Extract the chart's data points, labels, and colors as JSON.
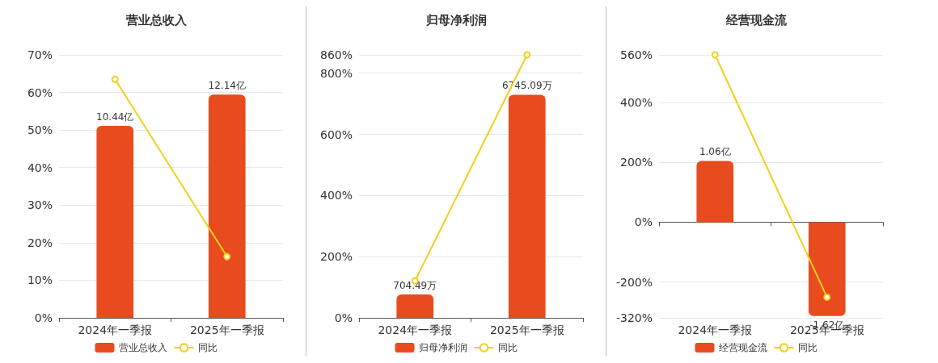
{
  "chart_data": [
    {
      "type": "bar",
      "title": "营业总收入",
      "categories": [
        "2024年一季报",
        "2025年一季报"
      ],
      "series": [
        {
          "name": "营业总收入",
          "axis": "y2",
          "color": "#e84c1e",
          "values": [
            10.44,
            12.14
          ],
          "value_labels": [
            "10.44亿",
            "12.14亿"
          ]
        },
        {
          "name": "同比",
          "type": "line",
          "color": "#f2cf1b",
          "values": [
            63.5,
            16.3
          ]
        }
      ],
      "ylim": [
        0,
        70
      ],
      "yticks": [
        {
          "value": 0,
          "label": "0%"
        },
        {
          "value": 10,
          "label": "10%"
        },
        {
          "value": 20,
          "label": "20%"
        },
        {
          "value": 30,
          "label": "30%"
        },
        {
          "value": 40,
          "label": "40%"
        },
        {
          "value": 50,
          "label": "50%"
        },
        {
          "value": 60,
          "label": "60%"
        },
        {
          "value": 70,
          "label": "70%"
        }
      ],
      "y2lim": [
        0,
        14.3
      ],
      "grid": "y",
      "legend": "bottom",
      "marker": "circle"
    },
    {
      "type": "bar",
      "title": "归母净利润",
      "categories": [
        "2024年一季报",
        "2025年一季报"
      ],
      "series": [
        {
          "name": "归母净利润",
          "axis": "y2",
          "color": "#e84c1e",
          "values": [
            704.49,
            6745.09
          ],
          "value_labels": [
            "704.49万",
            "6745.09万"
          ]
        },
        {
          "name": "同比",
          "type": "line",
          "color": "#f2cf1b",
          "values": [
            121,
            860
          ]
        }
      ],
      "ylim": [
        0,
        860
      ],
      "yticks": [
        {
          "value": 0,
          "label": "0%"
        },
        {
          "value": 200,
          "label": "200%"
        },
        {
          "value": 400,
          "label": "400%"
        },
        {
          "value": 600,
          "label": "600%"
        },
        {
          "value": 800,
          "label": "800%"
        },
        {
          "value": 860,
          "label": "860%"
        }
      ],
      "y2lim": [
        0,
        7950
      ],
      "grid": "y",
      "legend": "bottom",
      "marker": "circle"
    },
    {
      "type": "bar",
      "title": "经营现金流",
      "categories": [
        "2024年一季报",
        "2025年一季报"
      ],
      "series": [
        {
          "name": "经营现金流",
          "axis": "y2",
          "color": "#e84c1e",
          "values": [
            1.06,
            -1.62
          ],
          "value_labels": [
            "1.06亿",
            "-1.62亿"
          ]
        },
        {
          "name": "同比",
          "type": "line",
          "color": "#f2cf1b",
          "values": [
            560,
            -251
          ]
        }
      ],
      "ylim": [
        -320,
        560
      ],
      "yticks": [
        {
          "value": -320,
          "label": "-320%"
        },
        {
          "value": -200,
          "label": "-200%"
        },
        {
          "value": 0,
          "label": "0%"
        },
        {
          "value": 200,
          "label": "200%"
        },
        {
          "value": 400,
          "label": "400%"
        },
        {
          "value": 560,
          "label": "560%"
        }
      ],
      "y2lim": [
        -1.65,
        2.89
      ],
      "grid": "y",
      "legend": "bottom",
      "marker": "circle"
    }
  ]
}
